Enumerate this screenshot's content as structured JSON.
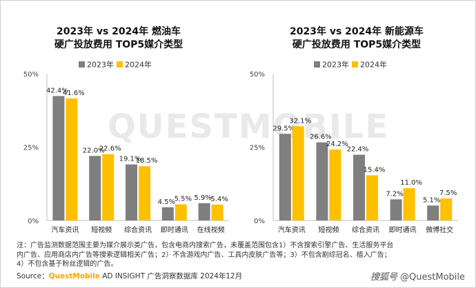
{
  "watermark": "QUESTMOBILE",
  "colors": {
    "series_2023": "#7f7f7f",
    "series_2024": "#ffc000",
    "axis": "#bfbfbf"
  },
  "chart_data": [
    {
      "type": "bar",
      "title_line1": "2023年 vs 2024年 燃油车",
      "title_line2": "硬广投放费用 TOP5媒介类型",
      "categories": [
        "汽车资讯",
        "短视频",
        "综合资讯",
        "即时通讯",
        "在线视频"
      ],
      "series": [
        {
          "name": "2023年",
          "values": [
            42.4,
            22.0,
            19.1,
            4.5,
            5.9
          ],
          "labels": [
            "42.4%",
            "22.0%",
            "19.1%",
            "4.5%",
            "5.9%"
          ]
        },
        {
          "name": "2024年",
          "values": [
            41.6,
            22.6,
            18.5,
            5.5,
            5.4
          ],
          "labels": [
            "41.6%",
            "22.6%",
            "18.5%",
            "5.5%",
            "5.4%"
          ]
        }
      ],
      "ylim": [
        0,
        50
      ],
      "yticks": [
        "0%",
        "25%",
        "50%"
      ],
      "legend": "top"
    },
    {
      "type": "bar",
      "title_line1": "2023年 vs 2024年 新能源车",
      "title_line2": "硬广投放费用 TOP5媒介类型",
      "categories": [
        "汽车资讯",
        "短视频",
        "综合资讯",
        "即时通讯",
        "微博社交"
      ],
      "series": [
        {
          "name": "2023年",
          "values": [
            29.5,
            26.6,
            22.4,
            7.2,
            5.1
          ],
          "labels": [
            "29.5%",
            "26.6%",
            "22.4%",
            "7.2%",
            "5.1%"
          ]
        },
        {
          "name": "2024年",
          "values": [
            32.1,
            24.2,
            15.4,
            11.0,
            7.5
          ],
          "labels": [
            "32.1%",
            "24.2%",
            "15.4%",
            "11.0%",
            "7.5%"
          ]
        }
      ],
      "ylim": [
        0,
        50
      ],
      "yticks": [
        "0%",
        "25%",
        "50%"
      ],
      "legend": "top"
    }
  ],
  "notes": [
    "注：广告监测数据范围主要为媒介展示类广告，包含电商内搜索广告，未覆盖范围包含1）不含搜索引擎广告、生活服务平台",
    "内广告、应用商店内广告等搜索逻辑相关广告；2）不含游戏内广告、工具内皮肤广告等；3）不包含剧综冠名、植入广告；",
    "4）不包含基于粉丝逻辑的广告。"
  ],
  "source": {
    "prefix": "Source：",
    "brand": "QuestMobile",
    "text": " AD INSIGHT 广告洞察数据库 2024年12月"
  },
  "corner": {
    "slot": "搜狐号",
    "handle": "@QuestMobile"
  }
}
